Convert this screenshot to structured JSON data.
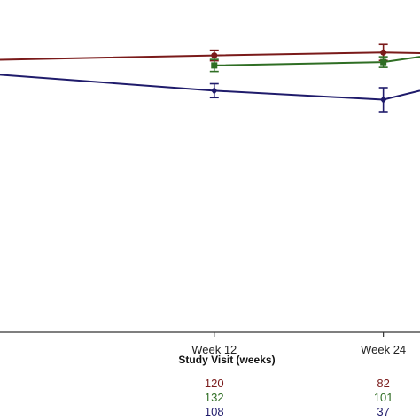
{
  "chart_data": {
    "type": "line",
    "xlabel": "Study Visit (weeks)",
    "x_ticks": [
      {
        "x": 12,
        "label": "Week 12"
      },
      {
        "x": 24,
        "label": "Week 24"
      }
    ],
    "xlim": [
      -3.2,
      26.6
    ],
    "ylim": [
      0,
      100
    ],
    "series": [
      {
        "color": "#7a1a1a",
        "marker": "circle",
        "points": [
          {
            "x": -3.2,
            "y": 82.0
          },
          {
            "x": 12,
            "y": 83.3,
            "err": 1.6
          },
          {
            "x": 24,
            "y": 84.2,
            "err": 2.4
          },
          {
            "x": 26.6,
            "y": 84.0
          }
        ]
      },
      {
        "color": "#2f6e24",
        "marker": "square",
        "points": [
          {
            "x": 12,
            "y": 80.3,
            "err": 1.8
          },
          {
            "x": 24,
            "y": 81.3,
            "err": 1.6
          },
          {
            "x": 26.6,
            "y": 82.9
          }
        ]
      },
      {
        "color": "#1f1b6b",
        "marker": "diamond",
        "points": [
          {
            "x": -3.2,
            "y": 77.5
          },
          {
            "x": 12,
            "y": 72.7,
            "err": 2.1
          },
          {
            "x": 24,
            "y": 70.0,
            "err": 3.6
          },
          {
            "x": 26.6,
            "y": 72.7
          }
        ]
      }
    ],
    "counts": [
      {
        "color": "#7a1a1a",
        "values": [
          {
            "x": 12,
            "n": "120"
          },
          {
            "x": 24,
            "n": "82"
          }
        ]
      },
      {
        "color": "#2f6e24",
        "values": [
          {
            "x": 12,
            "n": "132"
          },
          {
            "x": 24,
            "n": "101"
          }
        ]
      },
      {
        "color": "#1f1b6b",
        "values": [
          {
            "x": 12,
            "n": "108"
          },
          {
            "x": 24,
            "n": "37"
          }
        ]
      }
    ]
  }
}
